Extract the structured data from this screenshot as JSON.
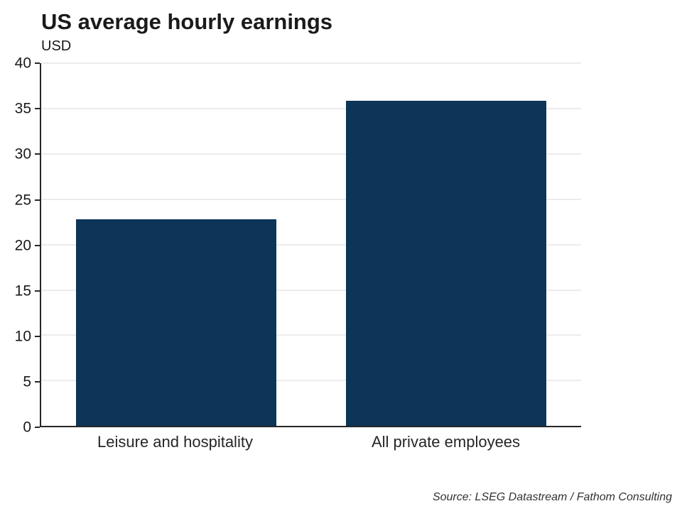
{
  "title": "US average hourly earnings",
  "subtitle": "USD",
  "source": "Source: LSEG Datastream / Fathom Consulting",
  "colors": {
    "bar": "#0d3557",
    "axis": "#262626",
    "gridline": "#d9d9d9"
  },
  "chart_data": {
    "type": "bar",
    "title": "US average hourly earnings",
    "ylabel": "USD",
    "xlabel": "",
    "categories": [
      "Leisure and hospitality",
      "All private employees"
    ],
    "values": [
      22.8,
      35.9
    ],
    "ylim": [
      0,
      40
    ],
    "ytick_step": 5,
    "grid": true,
    "legend": "none",
    "bar_color": "#0d3557"
  }
}
